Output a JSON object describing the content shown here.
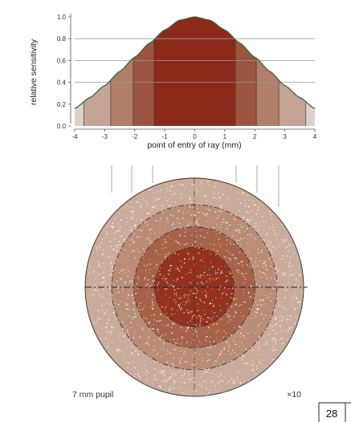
{
  "chart_data": {
    "type": "area",
    "xlabel": "point of entry of ray (mm)",
    "ylabel": "relative sensitivity",
    "xlim": [
      -4,
      4
    ],
    "ylim": [
      0,
      1.0
    ],
    "x_ticks": [
      "-4",
      "-3",
      "-2",
      "-1",
      "0",
      "1",
      "2",
      "3",
      "4"
    ],
    "y_ticks": [
      "0.0",
      "0.2",
      "0.4",
      "0.6",
      "0.8",
      "1.0"
    ],
    "gridlines_y": [
      0.4,
      0.6,
      0.8
    ],
    "curve": {
      "x": [
        -4,
        -3.5,
        -3,
        -2.5,
        -2,
        -1.5,
        -1,
        -0.5,
        0,
        0.5,
        1,
        1.5,
        2,
        2.5,
        3,
        3.5,
        4
      ],
      "y": [
        0.16,
        0.26,
        0.37,
        0.5,
        0.63,
        0.76,
        0.88,
        0.97,
        1.0,
        0.97,
        0.88,
        0.76,
        0.63,
        0.5,
        0.37,
        0.26,
        0.16
      ]
    },
    "bands": [
      {
        "from": -4,
        "to": -3.7,
        "color": "#dcd2ca"
      },
      {
        "from": -3.7,
        "to": -2.8,
        "color": "#c3a495"
      },
      {
        "from": -2.8,
        "to": -2.05,
        "color": "#b07e69"
      },
      {
        "from": -2.05,
        "to": -1.35,
        "color": "#9b5440"
      },
      {
        "from": -1.35,
        "to": 1.35,
        "color": "#8c2a1a"
      },
      {
        "from": 1.35,
        "to": 2.05,
        "color": "#9b5440"
      },
      {
        "from": 2.05,
        "to": 2.8,
        "color": "#b07e69"
      },
      {
        "from": 2.8,
        "to": 3.7,
        "color": "#c3a495"
      },
      {
        "from": 3.7,
        "to": 4,
        "color": "#dcd2ca"
      }
    ],
    "curve_color": "#2e6b52"
  },
  "pupil_diagram": {
    "caption": "7 mm pupil",
    "magnification": "×10",
    "rings": [
      {
        "outer_mm": 3.7,
        "color": "#c9ab9b"
      },
      {
        "outer_mm": 2.8,
        "color": "#b98d78"
      },
      {
        "outer_mm": 2.05,
        "color": "#a7634a"
      },
      {
        "outer_mm": 1.35,
        "color": "#93331f"
      }
    ]
  },
  "page": {
    "number": "28"
  }
}
